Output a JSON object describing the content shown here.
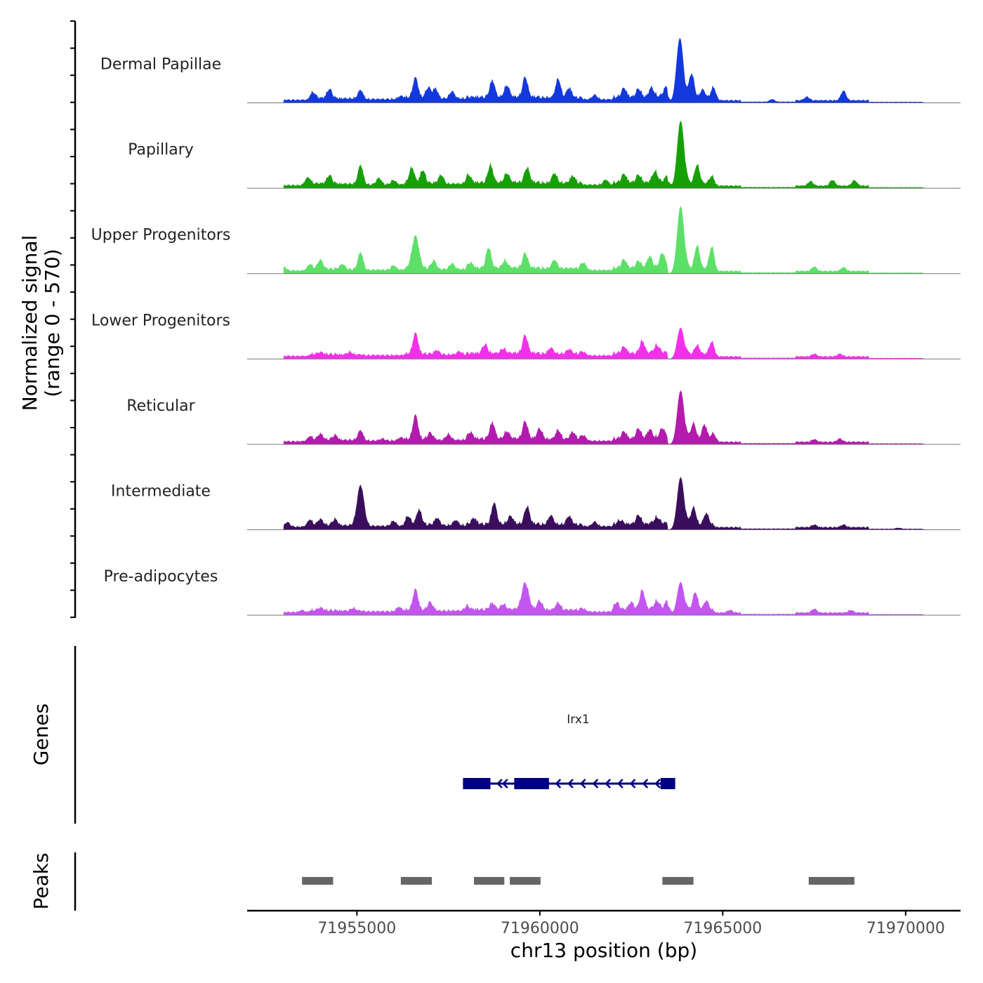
{
  "chart_data": {
    "type": "area",
    "title": "",
    "y_axis_title": "Normalized signal",
    "y_axis_subtitle": "(range 0 - 570)",
    "y_range": [
      0,
      570
    ],
    "x_axis_title": "chr13 position (bp)",
    "x_range": [
      71952000,
      71971500
    ],
    "x_ticks": [
      71955000,
      71960000,
      71965000,
      71970000
    ],
    "x_tick_labels": [
      "71955000",
      "71960000",
      "71965000",
      "71970000"
    ],
    "grid": false,
    "background_peaks": [
      [
        71953000,
        71953700,
        30
      ],
      [
        71953700,
        71954500,
        50
      ],
      [
        71954500,
        71955200,
        45
      ],
      [
        71955200,
        71956300,
        38
      ],
      [
        71956300,
        71957200,
        55
      ],
      [
        71957200,
        71958000,
        45
      ],
      [
        71958000,
        71959000,
        60
      ],
      [
        71959000,
        71960000,
        62
      ],
      [
        71960000,
        71961200,
        55
      ],
      [
        71961200,
        71962000,
        35
      ],
      [
        71962000,
        71963000,
        60
      ],
      [
        71963000,
        71963500,
        70
      ],
      [
        71964000,
        71964800,
        50
      ],
      [
        71964800,
        71965500,
        25
      ],
      [
        71965500,
        71967000,
        10
      ],
      [
        71967000,
        71969000,
        25
      ],
      [
        71969000,
        71970500,
        8
      ]
    ],
    "series": [
      {
        "name": "Dermal Papillae",
        "color": "#1338dc",
        "peaks": [
          [
            71953800,
            45
          ],
          [
            71954250,
            70
          ],
          [
            71955100,
            65
          ],
          [
            71956200,
            25
          ],
          [
            71956600,
            155
          ],
          [
            71956950,
            80
          ],
          [
            71957150,
            70
          ],
          [
            71957600,
            55
          ],
          [
            71958700,
            130
          ],
          [
            71959100,
            90
          ],
          [
            71959600,
            155
          ],
          [
            71960500,
            145
          ],
          [
            71960800,
            75
          ],
          [
            71961500,
            35
          ],
          [
            71962300,
            70
          ],
          [
            71962700,
            65
          ],
          [
            71963050,
            65
          ],
          [
            71963450,
            70
          ],
          [
            71963830,
            500
          ],
          [
            71964150,
            190
          ],
          [
            71964450,
            65
          ],
          [
            71964750,
            85
          ],
          [
            71966350,
            20
          ],
          [
            71967300,
            28
          ],
          [
            71968300,
            75
          ]
        ]
      },
      {
        "name": "Papillary",
        "color": "#16a006",
        "peaks": [
          [
            71953650,
            60
          ],
          [
            71954250,
            65
          ],
          [
            71955100,
            145
          ],
          [
            71955600,
            50
          ],
          [
            71956000,
            35
          ],
          [
            71956500,
            120
          ],
          [
            71956800,
            100
          ],
          [
            71957300,
            70
          ],
          [
            71958050,
            60
          ],
          [
            71958650,
            135
          ],
          [
            71959100,
            70
          ],
          [
            71959650,
            115
          ],
          [
            71960400,
            75
          ],
          [
            71960900,
            55
          ],
          [
            71961800,
            40
          ],
          [
            71962300,
            65
          ],
          [
            71962700,
            60
          ],
          [
            71963150,
            80
          ],
          [
            71963500,
            50
          ],
          [
            71963850,
            520
          ],
          [
            71964300,
            145
          ],
          [
            71964700,
            55
          ],
          [
            71967400,
            35
          ],
          [
            71968000,
            45
          ],
          [
            71968600,
            42
          ]
        ]
      },
      {
        "name": "Upper Progenitors",
        "color": "#5ce068",
        "peaks": [
          [
            71953000,
            30
          ],
          [
            71953700,
            40
          ],
          [
            71954000,
            70
          ],
          [
            71954600,
            40
          ],
          [
            71955100,
            130
          ],
          [
            71956000,
            35
          ],
          [
            71956600,
            250
          ],
          [
            71957100,
            60
          ],
          [
            71957600,
            45
          ],
          [
            71958100,
            40
          ],
          [
            71958600,
            160
          ],
          [
            71959050,
            55
          ],
          [
            71959600,
            115
          ],
          [
            71960400,
            65
          ],
          [
            71961200,
            55
          ],
          [
            71962300,
            65
          ],
          [
            71962700,
            55
          ],
          [
            71963000,
            85
          ],
          [
            71963350,
            110
          ],
          [
            71963850,
            520
          ],
          [
            71964300,
            180
          ],
          [
            71964700,
            170
          ],
          [
            71967500,
            35
          ],
          [
            71968300,
            30
          ]
        ]
      },
      {
        "name": "Lower Progenitors",
        "color": "#f230ea",
        "peaks": [
          [
            71954000,
            15
          ],
          [
            71954800,
            20
          ],
          [
            71956600,
            160
          ],
          [
            71957200,
            30
          ],
          [
            71957800,
            25
          ],
          [
            71958500,
            70
          ],
          [
            71959000,
            35
          ],
          [
            71959600,
            140
          ],
          [
            71960300,
            45
          ],
          [
            71960800,
            35
          ],
          [
            71961200,
            25
          ],
          [
            71962300,
            50
          ],
          [
            71962800,
            95
          ],
          [
            71963200,
            55
          ],
          [
            71963850,
            240
          ],
          [
            71964300,
            70
          ],
          [
            71964700,
            95
          ],
          [
            71967500,
            20
          ],
          [
            71968200,
            20
          ]
        ]
      },
      {
        "name": "Reticular",
        "color": "#b31aae",
        "peaks": [
          [
            71953700,
            30
          ],
          [
            71954000,
            45
          ],
          [
            71954400,
            35
          ],
          [
            71955100,
            75
          ],
          [
            71955700,
            15
          ],
          [
            71956200,
            25
          ],
          [
            71956600,
            185
          ],
          [
            71957000,
            50
          ],
          [
            71957500,
            45
          ],
          [
            71958100,
            50
          ],
          [
            71958700,
            125
          ],
          [
            71959100,
            55
          ],
          [
            71959600,
            135
          ],
          [
            71960000,
            80
          ],
          [
            71960500,
            70
          ],
          [
            71960900,
            55
          ],
          [
            71961200,
            40
          ],
          [
            71962300,
            55
          ],
          [
            71962700,
            80
          ],
          [
            71963000,
            65
          ],
          [
            71963350,
            75
          ],
          [
            71963850,
            415
          ],
          [
            71964200,
            125
          ],
          [
            71964500,
            115
          ],
          [
            71964750,
            50
          ],
          [
            71967500,
            20
          ],
          [
            71968200,
            25
          ]
        ]
      },
      {
        "name": "Intermediate",
        "color": "#3a0e5c",
        "peaks": [
          [
            71953100,
            35
          ],
          [
            71953700,
            45
          ],
          [
            71954000,
            45
          ],
          [
            71954400,
            45
          ],
          [
            71955100,
            310
          ],
          [
            71956000,
            40
          ],
          [
            71956400,
            65
          ],
          [
            71956700,
            115
          ],
          [
            71957200,
            55
          ],
          [
            71957700,
            40
          ],
          [
            71958200,
            45
          ],
          [
            71958750,
            165
          ],
          [
            71959200,
            60
          ],
          [
            71959650,
            135
          ],
          [
            71960300,
            70
          ],
          [
            71960800,
            65
          ],
          [
            71961500,
            35
          ],
          [
            71962200,
            30
          ],
          [
            71962700,
            70
          ],
          [
            71963200,
            45
          ],
          [
            71963850,
            405
          ],
          [
            71964200,
            135
          ],
          [
            71964550,
            90
          ],
          [
            71967500,
            20
          ],
          [
            71968300,
            20
          ],
          [
            71969800,
            8
          ]
        ]
      },
      {
        "name": "Pre-adipocytes",
        "color": "#c355f0",
        "peaks": [
          [
            71953500,
            15
          ],
          [
            71954000,
            20
          ],
          [
            71954900,
            20
          ],
          [
            71956150,
            35
          ],
          [
            71956600,
            160
          ],
          [
            71957000,
            60
          ],
          [
            71958000,
            30
          ],
          [
            71958700,
            50
          ],
          [
            71959000,
            40
          ],
          [
            71959600,
            205
          ],
          [
            71960000,
            70
          ],
          [
            71960500,
            55
          ],
          [
            71961200,
            20
          ],
          [
            71962100,
            55
          ],
          [
            71962500,
            55
          ],
          [
            71962800,
            150
          ],
          [
            71963200,
            60
          ],
          [
            71963500,
            70
          ],
          [
            71963850,
            255
          ],
          [
            71964250,
            140
          ],
          [
            71964550,
            75
          ],
          [
            71965200,
            20
          ],
          [
            71967500,
            30
          ],
          [
            71968500,
            20
          ]
        ]
      }
    ],
    "genes_track": {
      "label": "Genes",
      "gene_name": "Irx1",
      "strand": "-",
      "color": "#000080",
      "start": 71957900,
      "end": 71963700,
      "exons": [
        [
          71957900,
          71958650
        ],
        [
          71959300,
          71960250
        ],
        [
          71963300,
          71963700
        ]
      ]
    },
    "peaks_track": {
      "label": "Peaks",
      "color": "#666666",
      "regions": [
        [
          71953500,
          71954350
        ],
        [
          71956200,
          71957050
        ],
        [
          71958200,
          71959030
        ],
        [
          71959180,
          71960020
        ],
        [
          71963350,
          71964200
        ],
        [
          71967350,
          71968600
        ]
      ]
    }
  }
}
